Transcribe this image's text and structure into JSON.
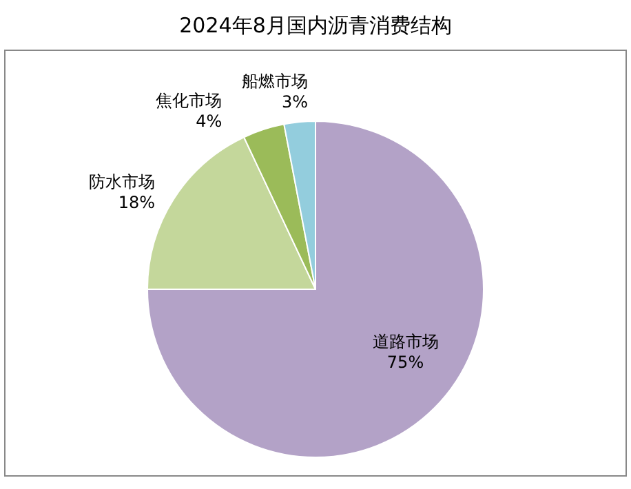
{
  "chart_data": {
    "type": "pie",
    "title": "2024年8月国内沥青消费结构",
    "categories": [
      "道路市场",
      "防水市场",
      "焦化市场",
      "船燃市场"
    ],
    "values": [
      75,
      18,
      4,
      3
    ],
    "colors": [
      "#b3a2c7",
      "#c4d79b",
      "#9bbb59",
      "#93cddd"
    ],
    "value_labels": [
      "75%",
      "18%",
      "4%",
      "3%"
    ],
    "legend": false
  }
}
